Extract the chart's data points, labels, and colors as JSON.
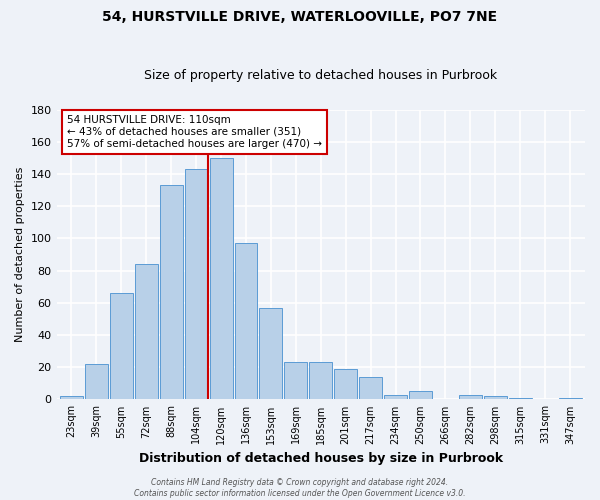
{
  "title": "54, HURSTVILLE DRIVE, WATERLOOVILLE, PO7 7NE",
  "subtitle": "Size of property relative to detached houses in Purbrook",
  "xlabel": "Distribution of detached houses by size in Purbrook",
  "ylabel": "Number of detached properties",
  "bar_labels": [
    "23sqm",
    "39sqm",
    "55sqm",
    "72sqm",
    "88sqm",
    "104sqm",
    "120sqm",
    "136sqm",
    "153sqm",
    "169sqm",
    "185sqm",
    "201sqm",
    "217sqm",
    "234sqm",
    "250sqm",
    "266sqm",
    "282sqm",
    "298sqm",
    "315sqm",
    "331sqm",
    "347sqm"
  ],
  "bar_heights": [
    2,
    22,
    66,
    84,
    133,
    143,
    150,
    97,
    57,
    23,
    23,
    19,
    14,
    3,
    5,
    0,
    3,
    2,
    1,
    0,
    1
  ],
  "bar_color": "#b8d0e8",
  "bar_edge_color": "#5b9bd5",
  "marker_bin_index": 5,
  "ylim": [
    0,
    180
  ],
  "yticks": [
    0,
    20,
    40,
    60,
    80,
    100,
    120,
    140,
    160,
    180
  ],
  "annotation_title": "54 HURSTVILLE DRIVE: 110sqm",
  "annotation_line1": "← 43% of detached houses are smaller (351)",
  "annotation_line2": "57% of semi-detached houses are larger (470) →",
  "annotation_box_color": "#ffffff",
  "annotation_box_edge": "#cc0000",
  "vline_color": "#cc0000",
  "footer1": "Contains HM Land Registry data © Crown copyright and database right 2024.",
  "footer2": "Contains public sector information licensed under the Open Government Licence v3.0.",
  "bg_color": "#eef2f8",
  "grid_color": "#ffffff",
  "title_fontsize": 10,
  "subtitle_fontsize": 9,
  "ylabel_fontsize": 8,
  "xlabel_fontsize": 9
}
